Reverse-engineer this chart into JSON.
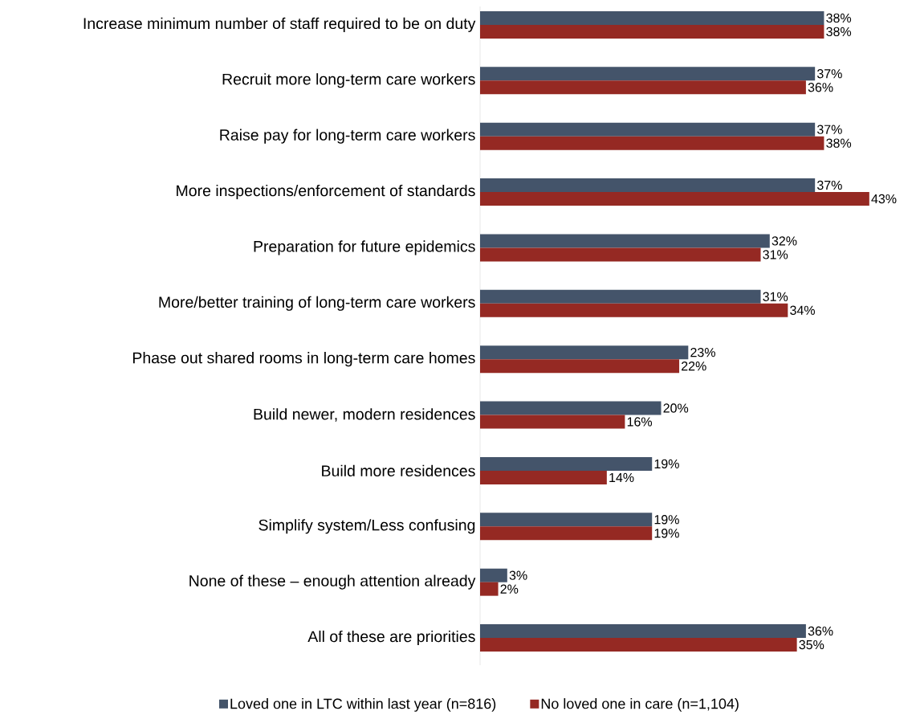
{
  "chart_data": {
    "type": "bar",
    "orientation": "horizontal",
    "categories": [
      "Increase minimum number of staff required to be on duty",
      "Recruit more long-term care workers",
      "Raise pay for long-term care workers",
      "More inspections/enforcement of standards",
      "Preparation for future epidemics",
      "More/better training of long-term care workers",
      "Phase out shared rooms in long-term care homes",
      "Build newer, modern residences",
      "Build more residences",
      "Simplify system/Less confusing",
      "None of these – enough attention already",
      "All of these are priorities"
    ],
    "series": [
      {
        "name": "Loved one in LTC within last year (n=816)",
        "color": "#44546a",
        "values": [
          38,
          37,
          37,
          37,
          32,
          31,
          23,
          20,
          19,
          19,
          3,
          36
        ],
        "value_labels": [
          "38%",
          "37%",
          "37%",
          "37%",
          "32%",
          "31%",
          "23%",
          "20%",
          "19%",
          "19%",
          "3%",
          "36%"
        ]
      },
      {
        "name": "No loved one in care (n=1,104)",
        "color": "#952923",
        "values": [
          38,
          36,
          38,
          43,
          31,
          34,
          22,
          16,
          14,
          19,
          2,
          35
        ],
        "value_labels": [
          "38%",
          "36%",
          "38%",
          "43%",
          "31%",
          "34%",
          "22%",
          "16%",
          "14%",
          "19%",
          "2%",
          "35%"
        ]
      }
    ],
    "legend": "bottom"
  }
}
